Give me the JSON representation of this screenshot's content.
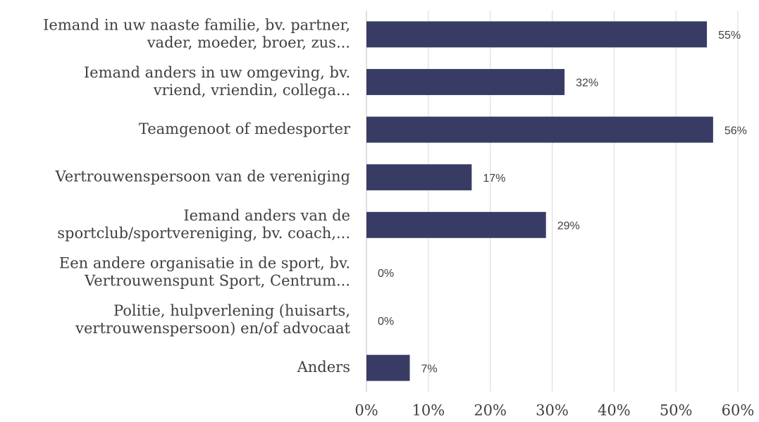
{
  "chart_data": {
    "type": "hbar",
    "categories": [
      [
        "Iemand in uw naaste familie, bv. partner,",
        "vader, moeder, broer, zus..."
      ],
      [
        "Iemand anders in uw omgeving, bv.",
        "vriend, vriendin, collega..."
      ],
      [
        "Teamgenoot of medesporter"
      ],
      [
        "Vertrouwenspersoon van de vereniging"
      ],
      [
        "Iemand anders van de",
        "sportclub/sportvereniging, bv. coach,..."
      ],
      [
        "Een andere organisatie in de sport, bv.",
        "Vertrouwenspunt Sport, Centrum..."
      ],
      [
        "Politie, hulpverlening (huisarts,",
        "vertrouwenspersoon) en/of advocaat"
      ],
      [
        "Anders"
      ]
    ],
    "values": [
      55,
      32,
      56,
      17,
      29,
      0,
      0,
      7
    ],
    "value_labels": [
      "55%",
      "32%",
      "56%",
      "17%",
      "29%",
      "0%",
      "0%",
      "7%"
    ],
    "color": "#383c65",
    "xlim": [
      0,
      60
    ],
    "xticks": [
      {
        "value": 0,
        "label": "0%"
      },
      {
        "value": 10,
        "label": "10%"
      },
      {
        "value": 20,
        "label": "20%"
      },
      {
        "value": 30,
        "label": "30%"
      },
      {
        "value": 40,
        "label": "40%"
      },
      {
        "value": 50,
        "label": "50%"
      },
      {
        "value": 60,
        "label": "60%"
      }
    ],
    "grid": true
  }
}
